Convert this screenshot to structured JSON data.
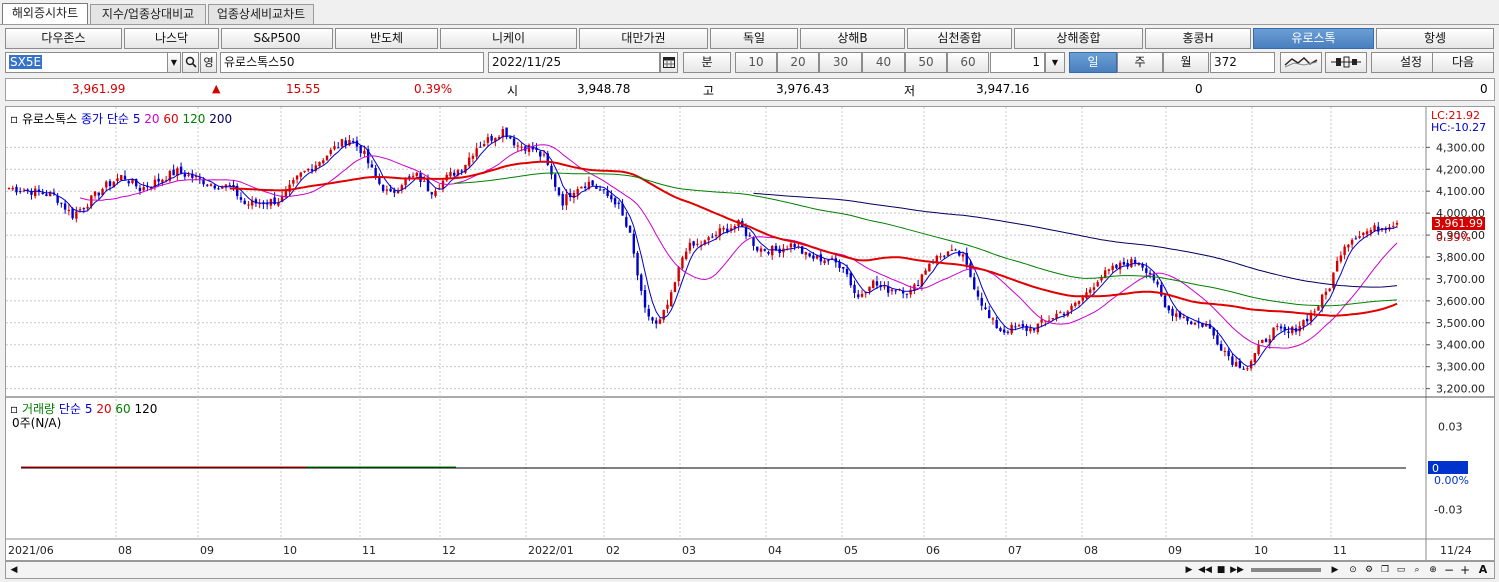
{
  "tabs": [
    {
      "label": "해외증시차트",
      "active": true
    },
    {
      "label": "지수/업종상대비교",
      "active": false
    },
    {
      "label": "업종상세비교차트",
      "active": false
    }
  ],
  "markets": [
    {
      "label": "다우존스"
    },
    {
      "label": "나스닥"
    },
    {
      "label": "S&P500"
    },
    {
      "label": "반도체"
    },
    {
      "label": "니케이"
    },
    {
      "label": "대만가권"
    },
    {
      "label": "독일"
    },
    {
      "label": "상해B"
    },
    {
      "label": "심천종합"
    },
    {
      "label": "상해종합"
    },
    {
      "label": "홍콩H"
    },
    {
      "label": "유로스톡",
      "selected": true
    },
    {
      "label": "항셍"
    }
  ],
  "toolbar": {
    "symbol": "SX5E",
    "view_label": "영",
    "name": "유로스톡스50",
    "date": "2022/11/25",
    "unit_label": "분",
    "minutes": [
      "10",
      "20",
      "30",
      "40",
      "50",
      "60"
    ],
    "multiplier": "1",
    "period_day": "일",
    "period_week": "주",
    "period_month": "월",
    "count": "372",
    "settings_label": "설정",
    "next_label": "다음"
  },
  "info": {
    "close": "3,961.99",
    "change_arrow": "▲",
    "change": "15.55",
    "change_pct": "0.39%",
    "open_label": "시",
    "open": "3,948.78",
    "high_label": "고",
    "high": "3,976.43",
    "low_label": "저",
    "low": "3,947.16",
    "volume1": "0",
    "volume2": "0"
  },
  "price_legend": {
    "name": "유로스톡스",
    "ma_label": "종가 단순",
    "ma5": "5",
    "ma20": "20",
    "ma60": "60",
    "ma120": "120",
    "ma200": "200",
    "lc": "LC:21.92",
    "hc": "HC:-10.27",
    "current_price": "3,961.99",
    "current_pct": "0.39%"
  },
  "volume_legend": {
    "name": "거래량",
    "ma_label": "단순",
    "ma5": "5",
    "ma20": "20",
    "ma60": "60",
    "ma120": "120",
    "unit_text": "0주(N/A)"
  },
  "colors": {
    "up": "#d40000",
    "down": "#0000cc",
    "ma5": "#0000cc",
    "ma20": "#cc00cc",
    "ma60": "#e00000",
    "ma120": "#008000",
    "ma200": "#000060",
    "accent": "#4a7fbf"
  },
  "chart_data": {
    "type": "candlestick",
    "x_ticks": [
      "2021/06",
      "08",
      "09",
      "10",
      "11",
      "12",
      "2022/01",
      "02",
      "03",
      "04",
      "05",
      "06",
      "07",
      "08",
      "09",
      "10",
      "11",
      "11/24"
    ],
    "y_ticks": [
      "4,300.00",
      "4,200.00",
      "4,100.00",
      "4,000.00",
      "3,900.00",
      "3,800.00",
      "3,700.00",
      "3,600.00",
      "3,500.00",
      "3,400.00",
      "3,300.00",
      "3,200.00"
    ],
    "ylim": [
      3180,
      4420
    ],
    "close_path": [
      [
        0,
        4115
      ],
      [
        10,
        4100
      ],
      [
        20,
        4080
      ],
      [
        28,
        3990
      ],
      [
        35,
        4050
      ],
      [
        42,
        4120
      ],
      [
        50,
        4170
      ],
      [
        58,
        4110
      ],
      [
        66,
        4150
      ],
      [
        74,
        4190
      ],
      [
        82,
        4160
      ],
      [
        90,
        4130
      ],
      [
        98,
        4120
      ],
      [
        104,
        4040
      ],
      [
        112,
        4050
      ],
      [
        120,
        4060
      ],
      [
        128,
        4170
      ],
      [
        136,
        4230
      ],
      [
        144,
        4300
      ],
      [
        150,
        4340
      ],
      [
        156,
        4280
      ],
      [
        162,
        4150
      ],
      [
        168,
        4080
      ],
      [
        174,
        4150
      ],
      [
        180,
        4170
      ],
      [
        186,
        4100
      ],
      [
        194,
        4170
      ],
      [
        200,
        4210
      ],
      [
        206,
        4300
      ],
      [
        212,
        4340
      ],
      [
        218,
        4380
      ],
      [
        224,
        4310
      ],
      [
        230,
        4300
      ],
      [
        236,
        4250
      ],
      [
        244,
        4050
      ],
      [
        250,
        4120
      ],
      [
        256,
        4140
      ],
      [
        262,
        4090
      ],
      [
        268,
        4050
      ],
      [
        274,
        3890
      ],
      [
        280,
        3560
      ],
      [
        286,
        3480
      ],
      [
        292,
        3620
      ],
      [
        298,
        3840
      ],
      [
        306,
        3860
      ],
      [
        314,
        3920
      ],
      [
        322,
        3950
      ],
      [
        330,
        3840
      ],
      [
        338,
        3830
      ],
      [
        346,
        3860
      ],
      [
        352,
        3800
      ],
      [
        360,
        3790
      ],
      [
        368,
        3760
      ],
      [
        374,
        3610
      ],
      [
        380,
        3690
      ],
      [
        386,
        3650
      ],
      [
        392,
        3660
      ],
      [
        398,
        3640
      ],
      [
        406,
        3780
      ],
      [
        414,
        3820
      ],
      [
        420,
        3810
      ],
      [
        426,
        3660
      ],
      [
        432,
        3520
      ],
      [
        438,
        3460
      ],
      [
        444,
        3480
      ],
      [
        450,
        3470
      ],
      [
        456,
        3500
      ],
      [
        462,
        3540
      ],
      [
        468,
        3560
      ],
      [
        474,
        3620
      ],
      [
        480,
        3700
      ],
      [
        486,
        3740
      ],
      [
        492,
        3770
      ],
      [
        498,
        3780
      ],
      [
        504,
        3720
      ],
      [
        510,
        3560
      ],
      [
        516,
        3540
      ],
      [
        522,
        3500
      ],
      [
        528,
        3490
      ],
      [
        534,
        3400
      ],
      [
        540,
        3320
      ],
      [
        546,
        3300
      ],
      [
        552,
        3400
      ],
      [
        558,
        3470
      ],
      [
        564,
        3450
      ],
      [
        570,
        3500
      ],
      [
        576,
        3560
      ],
      [
        582,
        3660
      ],
      [
        588,
        3850
      ],
      [
        594,
        3900
      ],
      [
        600,
        3920
      ],
      [
        606,
        3940
      ],
      [
        612,
        3962
      ]
    ],
    "volume_ylim": [
      -0.05,
      0.05
    ],
    "volume_ticks": [
      "0.03",
      "0",
      "0.00%",
      "-0.03"
    ]
  }
}
